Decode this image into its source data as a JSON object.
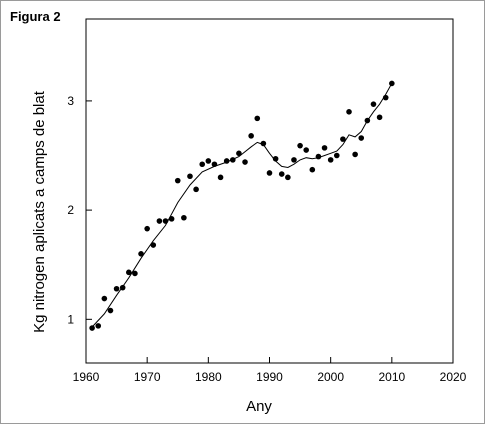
{
  "figure_label": "Figura 2",
  "colors": {
    "ink": "#000000",
    "frame": "#9a9a9a"
  },
  "chart_data": {
    "type": "scatter",
    "title": "",
    "xlabel": "Any",
    "ylabel": "Kg nitrogen aplicats a camps de blat",
    "xlim": [
      1960,
      2020
    ],
    "ylim": [
      0.6,
      3.75
    ],
    "xticks": [
      1960,
      1970,
      1980,
      1990,
      2000,
      2010,
      2020
    ],
    "yticks": [
      1,
      2,
      3
    ],
    "grid": false,
    "legend": "none",
    "series": [
      {
        "kind": "points",
        "x": [
          1961,
          1962,
          1963,
          1964,
          1965,
          1966,
          1967,
          1968,
          1969,
          1970,
          1971,
          1972,
          1973,
          1974,
          1975,
          1976,
          1977,
          1978,
          1979,
          1980,
          1981,
          1982,
          1983,
          1984,
          1985,
          1986,
          1987,
          1988,
          1989,
          1990,
          1991,
          1992,
          1993,
          1994,
          1995,
          1996,
          1997,
          1998,
          1999,
          2000,
          2001,
          2002,
          2003,
          2004,
          2005,
          2006,
          2007,
          2008,
          2009,
          2010
        ],
        "y": [
          0.92,
          0.94,
          1.19,
          1.08,
          1.28,
          1.29,
          1.43,
          1.42,
          1.6,
          1.83,
          1.68,
          1.9,
          1.9,
          1.92,
          2.27,
          1.93,
          2.31,
          2.19,
          2.42,
          2.45,
          2.42,
          2.3,
          2.45,
          2.46,
          2.52,
          2.44,
          2.68,
          2.84,
          2.61,
          2.34,
          2.47,
          2.33,
          2.3,
          2.46,
          2.59,
          2.55,
          2.37,
          2.49,
          2.57,
          2.46,
          2.5,
          2.65,
          2.9,
          2.51,
          2.66,
          2.82,
          2.97,
          2.85,
          3.03,
          3.16
        ]
      },
      {
        "kind": "smooth-line",
        "x": [
          1961,
          1963,
          1965,
          1967,
          1969,
          1971,
          1973,
          1975,
          1977,
          1979,
          1981,
          1983,
          1985,
          1987,
          1988,
          1989,
          1990,
          1991,
          1992,
          1993,
          1994,
          1995,
          1996,
          1997,
          1998,
          1999,
          2000,
          2001,
          2002,
          2003,
          2004,
          2005,
          2006,
          2007,
          2008,
          2009,
          2010
        ],
        "y": [
          0.93,
          1.05,
          1.22,
          1.38,
          1.56,
          1.72,
          1.86,
          2.07,
          2.23,
          2.35,
          2.4,
          2.44,
          2.49,
          2.58,
          2.62,
          2.6,
          2.52,
          2.45,
          2.4,
          2.39,
          2.42,
          2.46,
          2.48,
          2.47,
          2.48,
          2.5,
          2.52,
          2.54,
          2.6,
          2.69,
          2.67,
          2.72,
          2.82,
          2.9,
          2.97,
          3.06,
          3.16
        ]
      }
    ]
  }
}
